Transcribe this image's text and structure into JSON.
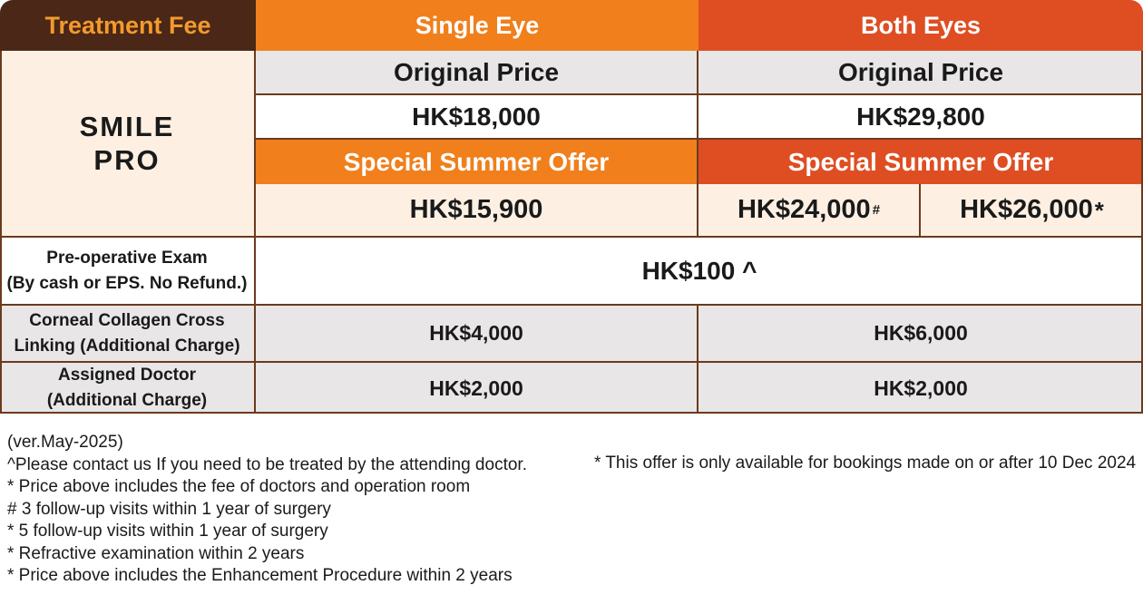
{
  "header": {
    "treatment_fee": "Treatment Fee",
    "single_eye": "Single Eye",
    "both_eyes": "Both Eyes"
  },
  "smile_pro": {
    "line1": "SMILE",
    "line2": "PRO"
  },
  "original_price_label": "Original Price",
  "single": {
    "original_price": "HK$18,000",
    "offer_label": "Special Summer Offer",
    "offer_price": "HK$15,900"
  },
  "both": {
    "original_price": "HK$29,800",
    "offer_label": "Special Summer Offer",
    "offer_price_a": "HK$24,000",
    "offer_mark_a": "#",
    "offer_price_b": "HK$26,000",
    "offer_mark_b": "*"
  },
  "pre_op": {
    "label_line1": "Pre-operative Exam",
    "label_line2": "(By cash or EPS. No Refund.)",
    "value": "HK$100 ^"
  },
  "ccl": {
    "label_line1": "Corneal Collagen Cross",
    "label_line2": "Linking (Additional Charge)",
    "single": "HK$4,000",
    "both": "HK$6,000"
  },
  "doctor": {
    "label_line1": "Assigned Doctor",
    "label_line2": "(Additional Charge)",
    "single": "HK$2,000",
    "both": "HK$2,000"
  },
  "notes": {
    "version": "(ver.May-2025)",
    "n1": "^Please contact us If you need to be treated by the attending doctor.",
    "n2": "* Price above includes the fee of doctors and operation room",
    "n3": "# 3 follow-up visits within 1 year of surgery",
    "n4": "* 5 follow-up visits within 1 year of surgery",
    "n5": "* Refractive examination within 2 years",
    "n6": "* Price above includes the Enhancement Procedure within 2 years",
    "right": "* This offer is only available for bookings made on or after 10 Dec 2024"
  },
  "colors": {
    "dark_brown": "#4a2716",
    "orange": "#f07f1c",
    "red_orange": "#de4e22",
    "cream": "#fdf0e3",
    "grey": "#e8e6e6"
  }
}
